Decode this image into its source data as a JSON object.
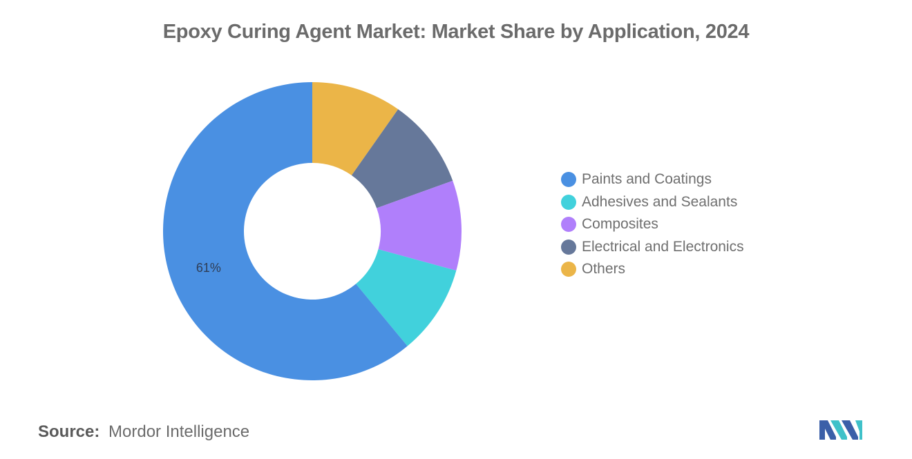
{
  "chart_data": {
    "type": "pie",
    "variant": "donut",
    "title": "Epoxy Curing Agent Market: Market Share by Application, 2024",
    "categories": [
      "Paints and Coatings",
      "Adhesives and Sealants",
      "Composites",
      "Electrical and Electronics",
      "Others"
    ],
    "values": [
      61,
      9.75,
      9.75,
      9.75,
      9.75
    ],
    "units": "%",
    "data_labels": [
      "61%",
      "",
      "",
      "",
      ""
    ],
    "colors": [
      "#4a90e2",
      "#41d1dc",
      "#b07ffb",
      "#66789a",
      "#ebb548"
    ],
    "slice_order_clockwise_from_top": [
      "Others",
      "Electrical and Electronics",
      "Composites",
      "Adhesives and Sealants",
      "Paints and Coatings"
    ],
    "legend_position": "right"
  },
  "legend": {
    "items": [
      {
        "label": "Paints and Coatings",
        "color": "#4a90e2"
      },
      {
        "label": "Adhesives and Sealants",
        "color": "#41d1dc"
      },
      {
        "label": "Composites",
        "color": "#b07ffb"
      },
      {
        "label": "Electrical and Electronics",
        "color": "#66789a"
      },
      {
        "label": "Others",
        "color": "#ebb548"
      }
    ]
  },
  "source": {
    "key": "Source:",
    "value": "Mordor Intelligence"
  },
  "logo": {
    "icon": "mordor-intelligence-logo-icon",
    "colors": [
      "#3b5fa8",
      "#3fc1c9"
    ]
  }
}
